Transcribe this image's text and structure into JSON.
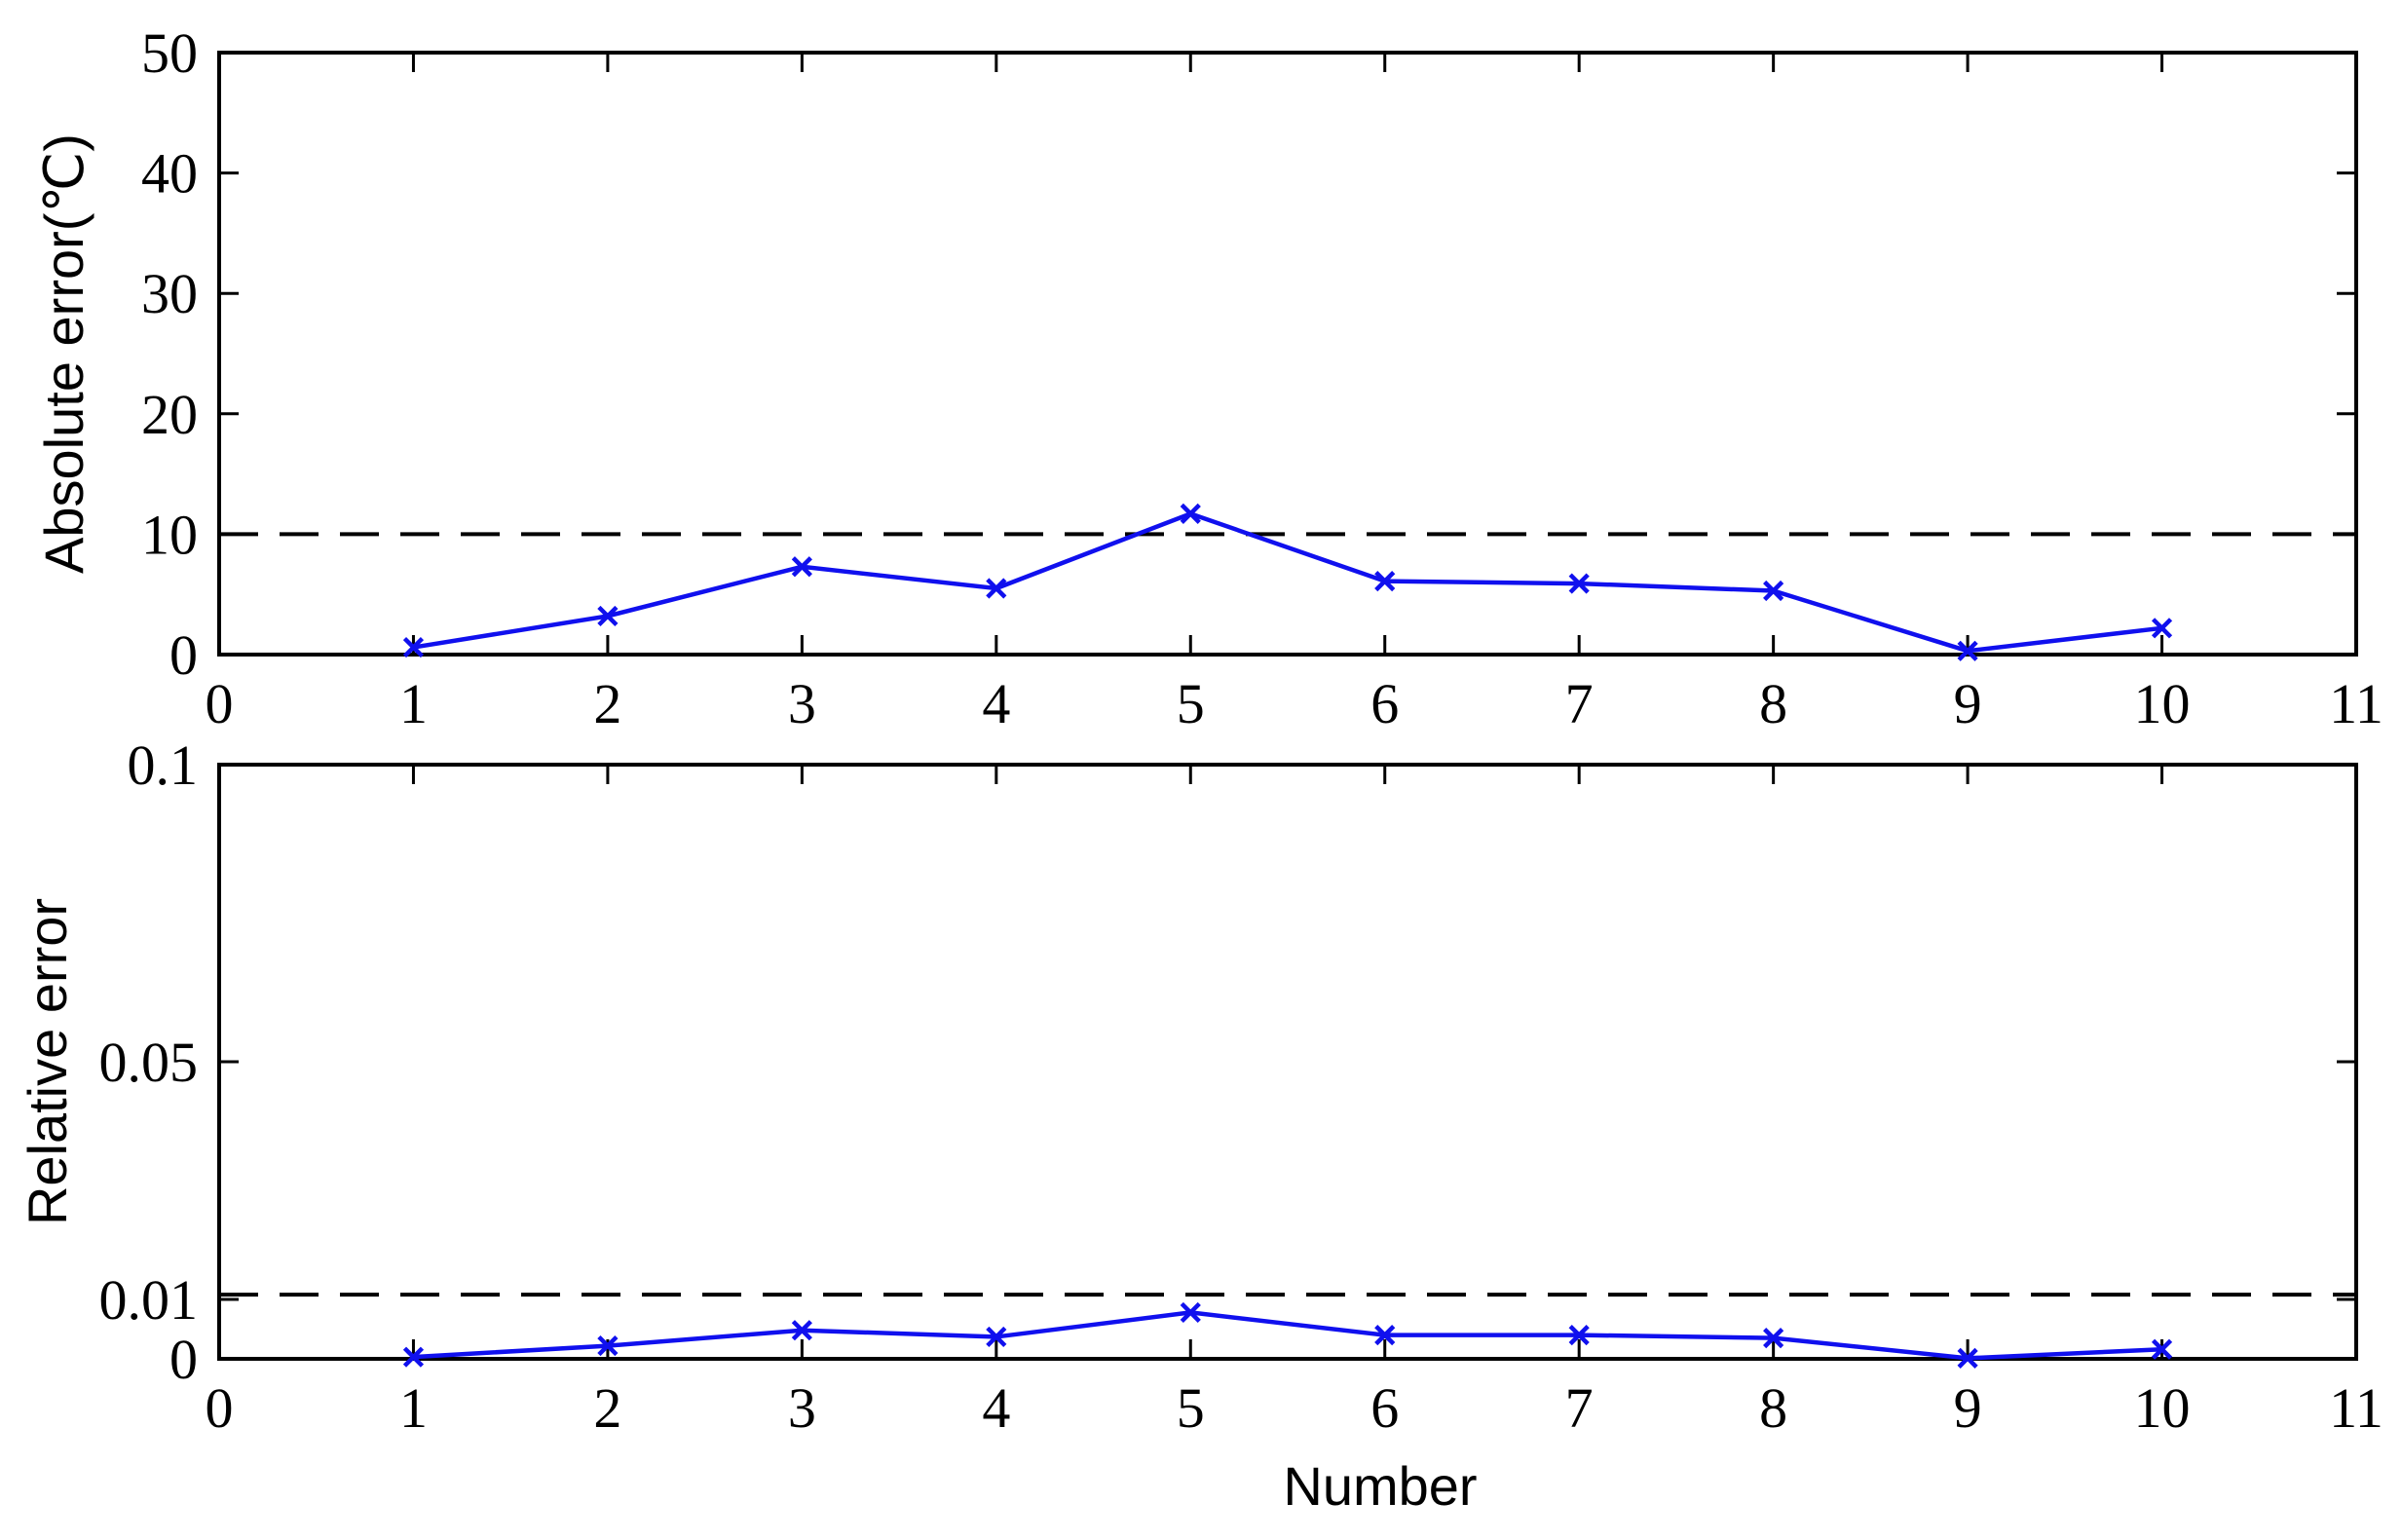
{
  "chart_data": [
    {
      "type": "line",
      "title": "",
      "xlabel": "",
      "ylabel": "Absolute error(℃)",
      "xlim": [
        0,
        11
      ],
      "ylim": [
        0,
        50
      ],
      "xticks": [
        "0",
        "1",
        "2",
        "3",
        "4",
        "5",
        "6",
        "7",
        "8",
        "9",
        "10",
        "11"
      ],
      "yticks": [
        "0",
        "10",
        "20",
        "30",
        "40",
        "50"
      ],
      "yticks_values": [
        0,
        10,
        20,
        30,
        40,
        50
      ],
      "reference_line": {
        "y": 10,
        "style": "dashed",
        "color": "#000000"
      },
      "x": [
        1,
        2,
        3,
        4,
        5,
        6,
        7,
        8,
        9,
        10
      ],
      "series": [
        {
          "values": [
            0.6,
            3.2,
            7.3,
            5.5,
            11.7,
            6.1,
            5.9,
            5.3,
            0.3,
            2.2
          ],
          "color": "#1010ee",
          "marker": "x"
        }
      ],
      "grid": false
    },
    {
      "type": "line",
      "title": "",
      "xlabel": "Number",
      "ylabel": "Relative error",
      "xlim": [
        0,
        11
      ],
      "ylim": [
        0,
        0.1
      ],
      "xticks": [
        "0",
        "1",
        "2",
        "3",
        "4",
        "5",
        "6",
        "7",
        "8",
        "9",
        "10",
        "11"
      ],
      "yticks": [
        "0",
        "0.01",
        "0.05",
        "0.1"
      ],
      "yticks_values": [
        0,
        0.01,
        0.05,
        0.1
      ],
      "reference_line": {
        "y": 0.0108,
        "style": "dashed",
        "color": "#000000"
      },
      "x": [
        1,
        2,
        3,
        4,
        5,
        6,
        7,
        8,
        9,
        10
      ],
      "series": [
        {
          "values": [
            0.0003,
            0.0022,
            0.0048,
            0.0037,
            0.0078,
            0.004,
            0.004,
            0.0035,
            0.0001,
            0.0016
          ],
          "color": "#1010ee",
          "marker": "x"
        }
      ],
      "grid": false
    }
  ]
}
